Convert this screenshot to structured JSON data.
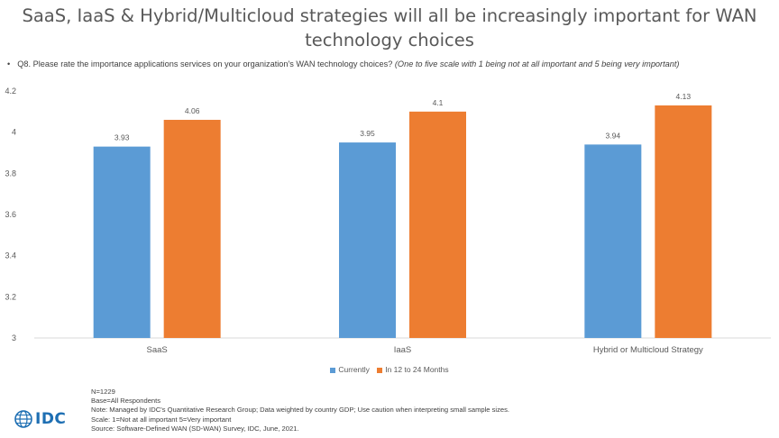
{
  "header": {
    "title": "SaaS, IaaS & Hybrid/Multicloud strategies will all be increasingly important for WAN technology choices",
    "question_bullet": "•",
    "question": "Q8. Please rate the importance applications services on your organization's WAN technology choices?",
    "question_hint": "(One to five scale with 1 being not at all important and 5 being very important)"
  },
  "chart_data": {
    "type": "bar",
    "categories": [
      "SaaS",
      "IaaS",
      "Hybrid or Multicloud Strategy"
    ],
    "series": [
      {
        "name": "Currently",
        "values": [
          3.93,
          3.95,
          3.94
        ],
        "color": "#5b9bd5",
        "labels": [
          "3.93",
          "3.95",
          "3.94"
        ]
      },
      {
        "name": "In 12 to 24 Months",
        "values": [
          4.06,
          4.1,
          4.13
        ],
        "color": "#ed7d31",
        "labels": [
          "4.06",
          "4.1",
          "4.13"
        ]
      }
    ],
    "ylim": [
      3,
      4.2
    ],
    "yticks": [
      3,
      3.2,
      3.4,
      3.6,
      3.8,
      4,
      4.2
    ],
    "ytick_labels": [
      "3",
      "3.2",
      "3.4",
      "3.6",
      "3.8",
      "4",
      "4.2"
    ],
    "legend_position": "bottom",
    "grid": false
  },
  "notes": {
    "n": "N=1229",
    "base": "Base=All Respondents",
    "note": "Note: Managed by IDC's Quantitative Research Group; Data weighted by country GDP; Use caution when interpreting small sample sizes.",
    "scale": "Scale: 1=Not at all important 5=Very important",
    "source": "Source: Software-Defined WAN (SD-WAN) Survey, IDC, June, 2021."
  },
  "logo": {
    "text": "IDC",
    "icon": "idc-globe-icon",
    "color": "#1e6fb3"
  }
}
